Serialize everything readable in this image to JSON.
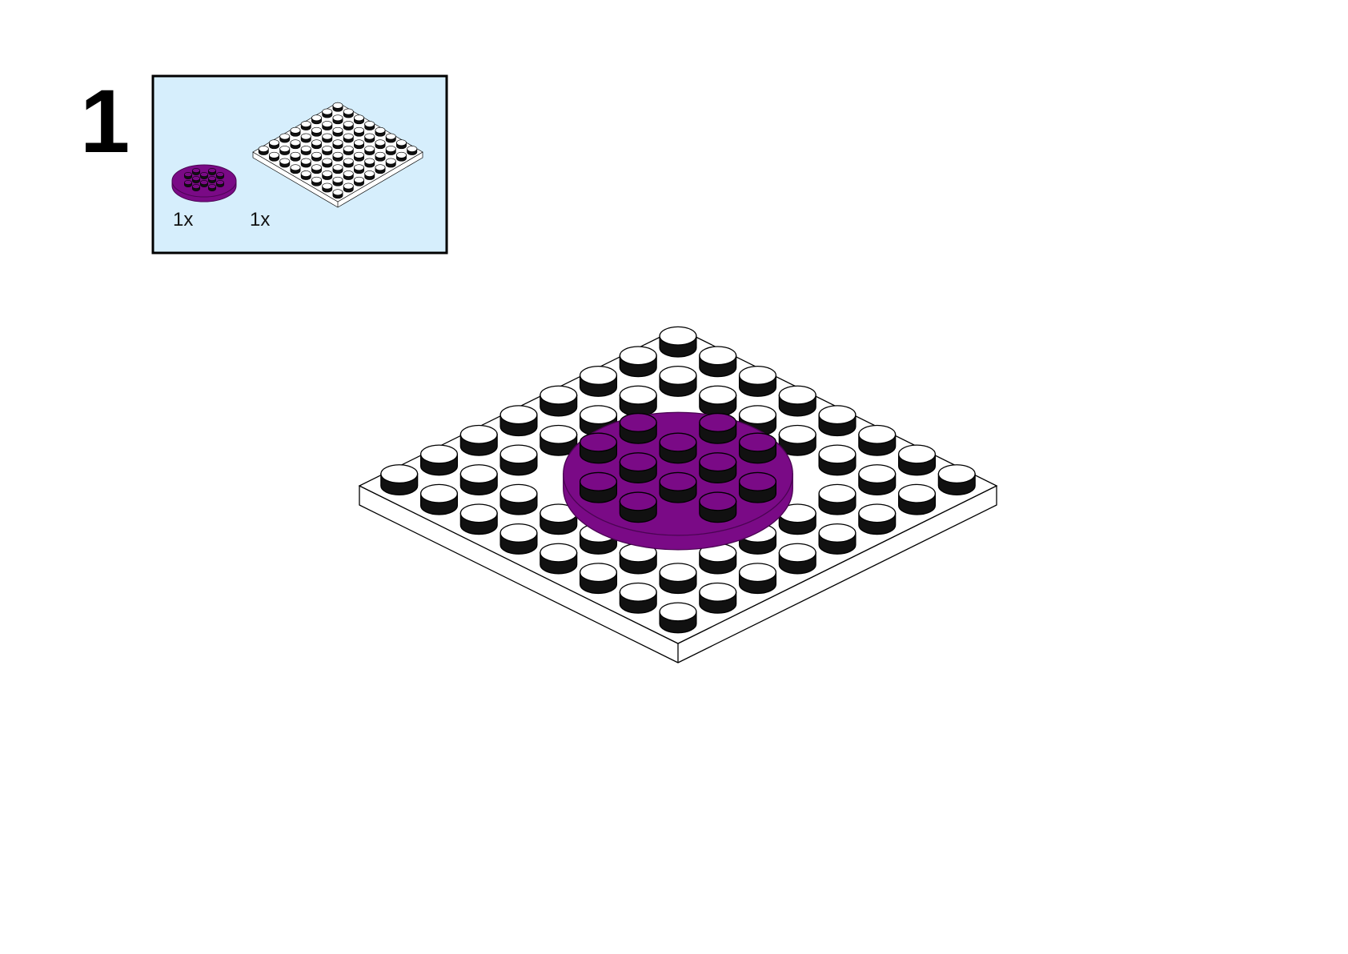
{
  "step": {
    "number": "1"
  },
  "parts": [
    {
      "quantity": "1x"
    },
    {
      "quantity": "1x"
    }
  ]
}
